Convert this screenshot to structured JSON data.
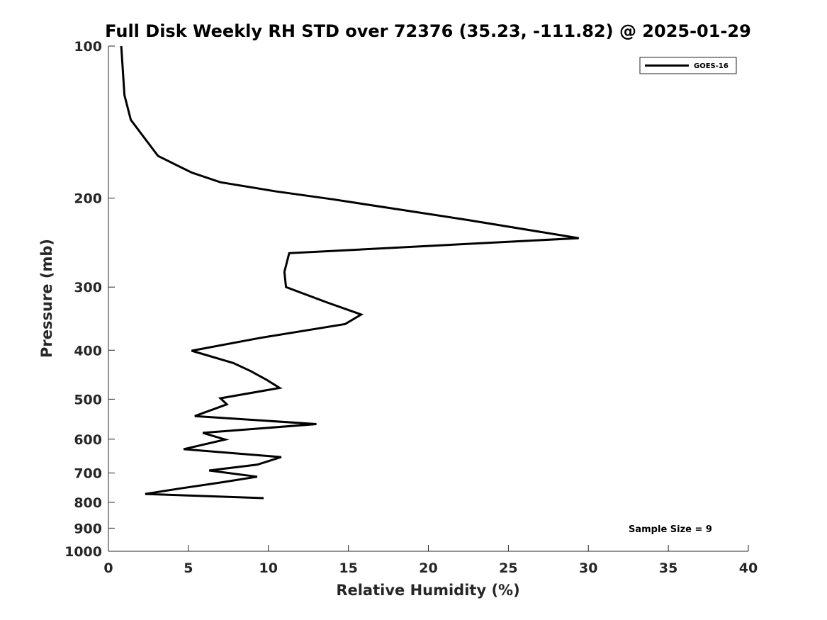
{
  "chart_data": {
    "type": "line",
    "title": "Full Disk Weekly RH STD over 72376 (35.23, -111.82) @ 2025-01-29",
    "xlabel": "Relative Humidity (%)",
    "ylabel": "Pressure (mb)",
    "xlim": [
      0,
      40
    ],
    "ylim": [
      100,
      1000
    ],
    "y_scale": "log",
    "y_reversed": true,
    "x_ticks": [
      0,
      5,
      10,
      15,
      20,
      25,
      30,
      35,
      40
    ],
    "y_ticks": [
      100,
      200,
      300,
      400,
      500,
      600,
      700,
      800,
      900,
      1000
    ],
    "grid": false,
    "legend_position": "top-right",
    "series": [
      {
        "name": "GOES-16",
        "color": "#000000",
        "points": [
          [
            0.8,
            100
          ],
          [
            1.0,
            125
          ],
          [
            1.4,
            140
          ],
          [
            3.1,
            165
          ],
          [
            5.2,
            178
          ],
          [
            7.0,
            186
          ],
          [
            10.5,
            194
          ],
          [
            14.0,
            201
          ],
          [
            22.5,
            221
          ],
          [
            29.4,
            240
          ],
          [
            11.3,
            257
          ],
          [
            11.0,
            280
          ],
          [
            11.1,
            300
          ],
          [
            13.7,
            322
          ],
          [
            15.8,
            340
          ],
          [
            14.8,
            355
          ],
          [
            9.5,
            378
          ],
          [
            5.2,
            401
          ],
          [
            7.8,
            424
          ],
          [
            8.9,
            440
          ],
          [
            9.9,
            458
          ],
          [
            10.7,
            475
          ],
          [
            7.0,
            498
          ],
          [
            7.4,
            512
          ],
          [
            5.4,
            540
          ],
          [
            13.0,
            560
          ],
          [
            5.9,
            583
          ],
          [
            7.3,
            601
          ],
          [
            4.7,
            628
          ],
          [
            10.8,
            651
          ],
          [
            9.3,
            674
          ],
          [
            6.3,
            692
          ],
          [
            9.3,
            712
          ],
          [
            7.0,
            731
          ],
          [
            4.5,
            751
          ],
          [
            2.3,
            770
          ],
          [
            9.7,
            785
          ]
        ]
      }
    ],
    "annotations": [
      {
        "text": "Sample Size = 9",
        "position": "bottom-right"
      }
    ]
  }
}
